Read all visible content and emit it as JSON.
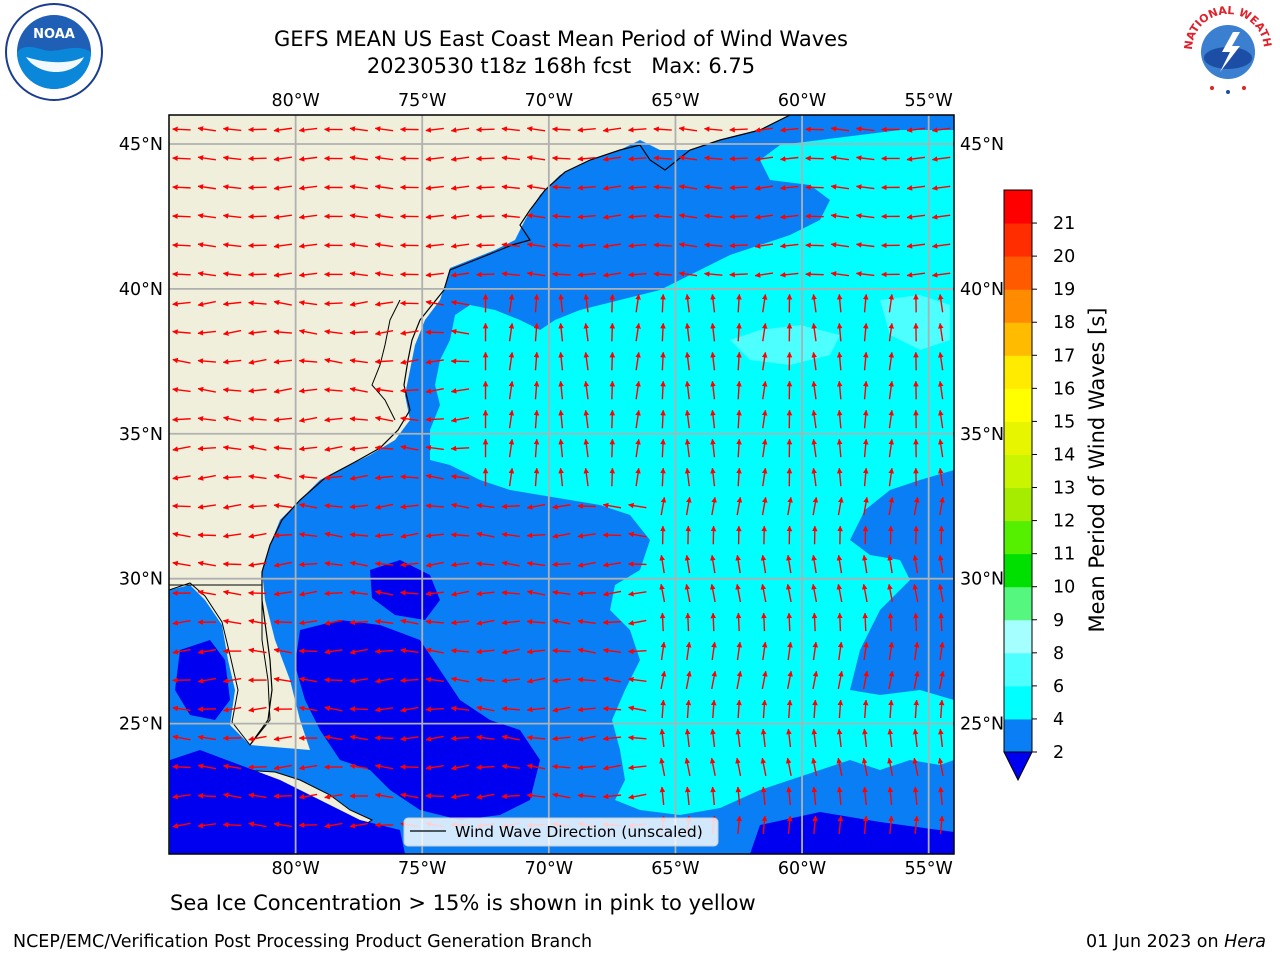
{
  "header": {
    "title_line1": "GEFS MEAN US East Coast Mean Period of Wind Waves",
    "title_line2": "20230530 t18z 168h fcst   Max: 6.75"
  },
  "logos": {
    "left": {
      "icon": "noaa-logo",
      "text": "NOAA"
    },
    "right": {
      "icon": "nws-logo",
      "text": "NATIONAL WEATHER SERVICE"
    }
  },
  "map": {
    "lon_ticks": [
      "80°W",
      "75°W",
      "70°W",
      "65°W",
      "60°W",
      "55°W"
    ],
    "lat_ticks": [
      "45°N",
      "40°N",
      "35°N",
      "30°N",
      "25°N"
    ],
    "legend_label": "Wind Wave Direction (unscaled)",
    "colors": {
      "land": "#efefdc",
      "ocean_2_4": "#0a7ff5",
      "ocean_0_2": "#0000f0",
      "ocean_4_6": "#00ffff",
      "ocean_6_8": "#4dffff",
      "arrow": "#ff0000",
      "grid": "#b0b0b0"
    }
  },
  "chart_data": {
    "type": "heatmap",
    "title": "GEFS MEAN US East Coast Mean Period of Wind Waves",
    "subtitle": "20230530 t18z 168h fcst   Max: 6.75",
    "xlabel": "",
    "ylabel": "",
    "xlim": [
      -85,
      -54
    ],
    "ylim": [
      20.5,
      46
    ],
    "grid": true,
    "colorbar": {
      "label": "Mean Period of Wind Waves [s]",
      "ticks": [
        "2",
        "4",
        "6",
        "8",
        "9",
        "10",
        "11",
        "12",
        "13",
        "14",
        "15",
        "16",
        "17",
        "18",
        "19",
        "20",
        "21"
      ],
      "levels": [
        {
          "from": 2,
          "to": 4,
          "color": "#0a7ff5"
        },
        {
          "from": 4,
          "to": 6,
          "color": "#00ffff"
        },
        {
          "from": 6,
          "to": 8,
          "color": "#4dffff"
        },
        {
          "from": 8,
          "to": 9,
          "color": "#a5ffff"
        },
        {
          "from": 9,
          "to": 10,
          "color": "#55f77e"
        },
        {
          "from": 10,
          "to": 11,
          "color": "#00e000"
        },
        {
          "from": 11,
          "to": 12,
          "color": "#55ef00"
        },
        {
          "from": 12,
          "to": 13,
          "color": "#a6ec00"
        },
        {
          "from": 13,
          "to": 14,
          "color": "#caf500"
        },
        {
          "from": 14,
          "to": 15,
          "color": "#e7f500"
        },
        {
          "from": 15,
          "to": 16,
          "color": "#ffff00"
        },
        {
          "from": 16,
          "to": 17,
          "color": "#ffeb00"
        },
        {
          "from": 17,
          "to": 18,
          "color": "#ffbb00"
        },
        {
          "from": 18,
          "to": 19,
          "color": "#ff8c00"
        },
        {
          "from": 19,
          "to": 20,
          "color": "#ff5a00"
        },
        {
          "from": 20,
          "to": 21,
          "color": "#ff2d00"
        },
        {
          "from": 21,
          "to": 22,
          "color": "#ff0000"
        }
      ],
      "under_color": "#0000f0",
      "placement": "right"
    },
    "max_value": 6.75
  },
  "footer": {
    "subtitle": "Sea Ice Concentration > 15% is shown in pink to yellow",
    "left": "NCEP/EMC/Verification Post Processing Product Generation Branch",
    "right_date": "01 Jun 2023 on ",
    "right_machine": "Hera"
  }
}
